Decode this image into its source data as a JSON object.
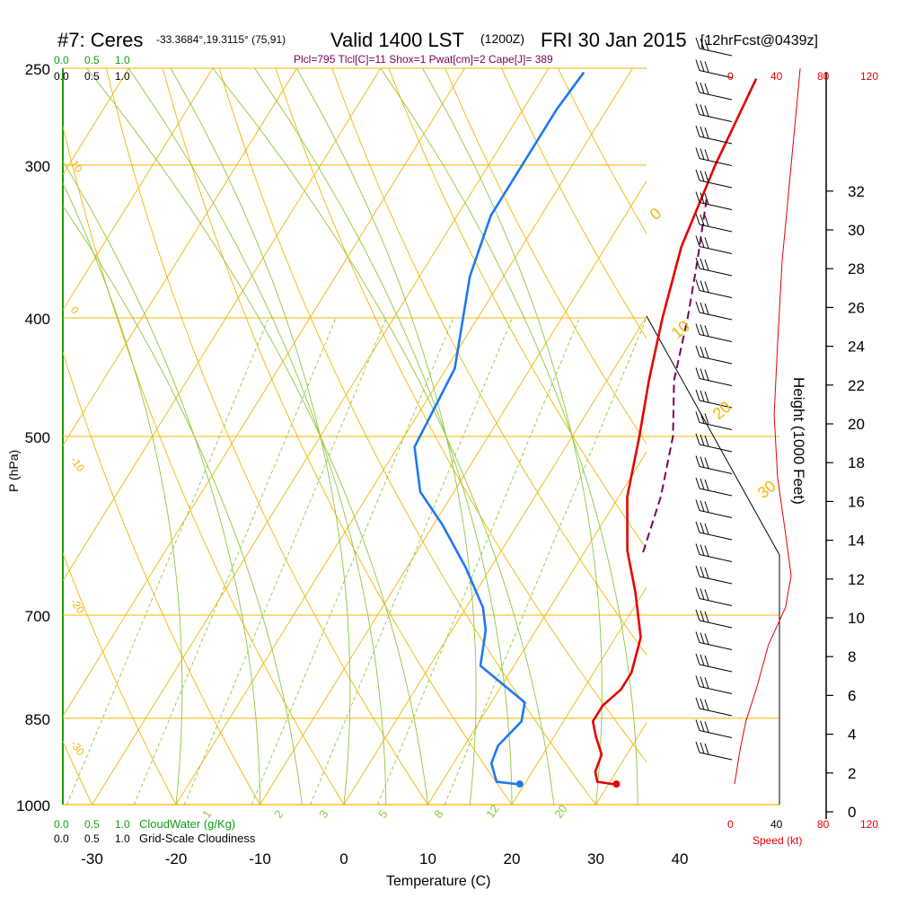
{
  "header": {
    "station": "#7: Ceres",
    "coords": "-33.3684°,19.3115° (75,91)",
    "valid": "Valid 1400 LST",
    "zulu": "(1200Z)",
    "date": "FRI 30 Jan 2015",
    "forecast": "[12hrFcst@0439z]"
  },
  "indices": "Plcl=795 Tlcl[C]=11 Shox=1 Pwat[cm]=2 Cape[J]= 389",
  "colors": {
    "isotherm": "#f5b400",
    "mixing_ratio": "#8cc83c",
    "temperature": "#e60000",
    "dewpoint": "#1e78f0",
    "parcel": "#7a005a",
    "cloud_scale": "#12a012",
    "wind_scale": "#e60000"
  },
  "labels": {
    "cloud_top_nums": [
      "0.0",
      "0.5",
      "1.0"
    ],
    "cloud_top_nums_black": [
      "0.0",
      "0.5",
      "1.0"
    ],
    "cloud_bottom_nums": [
      "0.0",
      "0.5",
      "1.0"
    ],
    "cloud_bottom_nums_black": [
      "0.0",
      "0.5",
      "1.0"
    ],
    "cloudwater_label": "CloudWater (g/Kg)",
    "cloudiness_label": "Grid-Scale Cloudiness",
    "speed_top": [
      "0",
      "40",
      "80",
      "120"
    ],
    "speed_bottom": [
      "0",
      "40",
      "80",
      "120"
    ],
    "speed_label": "Speed (kt)",
    "height_label": "Height (1000 Feet)",
    "pressure_label": "P (hPa)",
    "temperature_label": "Temperature (C)",
    "isotherm_labels": [
      "10",
      "0",
      "-10",
      "-20",
      "-30"
    ],
    "adiabat_labels": [
      "0",
      "10",
      "20",
      "30"
    ],
    "mixing_labels": [
      "1",
      "2",
      "3",
      "5",
      "8",
      "12",
      "20"
    ]
  },
  "chart_data": {
    "type": "line",
    "title": "#7: Ceres",
    "subtitle": "Valid 1400 LST (1200Z) FRI 30 Jan 2015",
    "xlabel": "Temperature (C)",
    "ylabel": "P (hPa)",
    "y2label": "Height (1000 Feet)",
    "pressure_ticks": [
      250,
      300,
      400,
      500,
      700,
      850,
      1000
    ],
    "temperature_ticks": [
      -30,
      -20,
      -10,
      0,
      10,
      20,
      30,
      40
    ],
    "height_ticks": [
      0,
      2,
      4,
      6,
      8,
      10,
      12,
      14,
      16,
      18,
      20,
      22,
      24,
      26,
      28,
      30,
      32
    ],
    "xlim": [
      -34,
      36
    ],
    "ylim": [
      1000,
      250
    ],
    "series": [
      {
        "name": "Temperature",
        "points": [
          [
            30.5,
            962
          ],
          [
            28.5,
            958
          ],
          [
            27.5,
            940
          ],
          [
            27,
            910
          ],
          [
            25,
            880
          ],
          [
            23.5,
            855
          ],
          [
            23.5,
            830
          ],
          [
            24.5,
            805
          ],
          [
            24.5,
            780
          ],
          [
            23,
            730
          ],
          [
            19,
            670
          ],
          [
            15,
            620
          ],
          [
            11,
            560
          ],
          [
            8,
            500
          ],
          [
            5,
            450
          ],
          [
            2,
            400
          ],
          [
            -1,
            350
          ],
          [
            -3,
            300
          ],
          [
            -4.5,
            255
          ]
        ]
      },
      {
        "name": "Dewpoint",
        "points": [
          [
            19,
            962
          ],
          [
            16.5,
            958
          ],
          [
            14.5,
            925
          ],
          [
            14,
            895
          ],
          [
            15,
            855
          ],
          [
            14,
            825
          ],
          [
            6,
            770
          ],
          [
            4,
            720
          ],
          [
            2,
            690
          ],
          [
            -3,
            640
          ],
          [
            -9,
            590
          ],
          [
            -14,
            555
          ],
          [
            -18,
            510
          ],
          [
            -19,
            440
          ],
          [
            -24,
            370
          ],
          [
            -26,
            330
          ],
          [
            -26,
            295
          ],
          [
            -26,
            270
          ],
          [
            -25.5,
            252
          ]
        ]
      },
      {
        "name": "Parcel",
        "points": [
          [
            17,
            622
          ],
          [
            15,
            560
          ],
          [
            12,
            500
          ],
          [
            8,
            450
          ],
          [
            5,
            400
          ],
          [
            2,
            360
          ],
          [
            -1.5,
            320
          ]
        ]
      }
    ],
    "wind_speed_profile_kt": [
      [
        0,
        962
      ],
      [
        5,
        900
      ],
      [
        10,
        855
      ],
      [
        20,
        800
      ],
      [
        30,
        740
      ],
      [
        45,
        690
      ],
      [
        50,
        650
      ],
      [
        45,
        600
      ],
      [
        38,
        540
      ],
      [
        35,
        480
      ],
      [
        38,
        420
      ],
      [
        42,
        360
      ],
      [
        50,
        300
      ],
      [
        58,
        250
      ]
    ]
  }
}
